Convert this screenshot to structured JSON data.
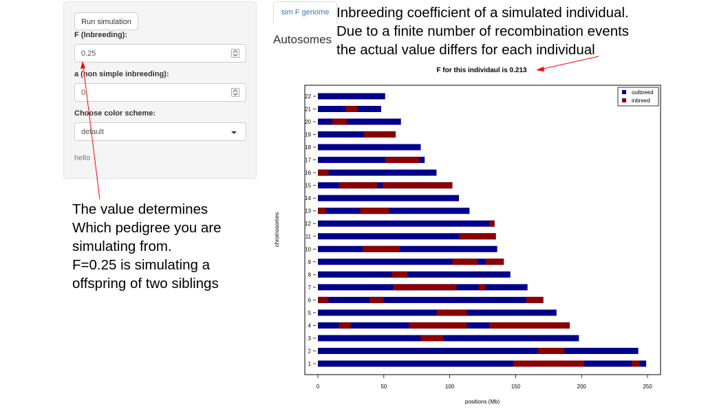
{
  "sidebar": {
    "run_button": "Run simulation",
    "f_label": "F (Inbreeding):",
    "f_value": "0.25",
    "a_label": "a (non simple inbreeding):",
    "a_value": "0",
    "color_label": "Choose color scheme:",
    "color_value": "default",
    "footer_text": "hello"
  },
  "tabs": {
    "active_tab": "sim F genome",
    "section_title": "Autosomes"
  },
  "annotations": {
    "top_lines": [
      "Inbreeding coefficient of a simulated individual.",
      "Due to a finite number of recombination events",
      "the actual value differs for each individual"
    ],
    "left_lines": [
      "The value determines",
      "Which pedigree you are",
      "simulating from.",
      "F=0.25 is simulating a",
      "offspring of two siblings"
    ],
    "arrow_color": "#ff0000"
  },
  "chart_data": {
    "type": "bar",
    "title": "F for this individaul is  0.213",
    "xlabel": "positions (Mb)",
    "ylabel": "chromosomes",
    "xlim": [
      0,
      250
    ],
    "xticks": [
      0,
      50,
      100,
      150,
      200,
      250
    ],
    "legend": {
      "position": "top-right",
      "entries": [
        "outbreed",
        "inbreed"
      ]
    },
    "colors": {
      "outbreed": "#00008b",
      "inbreed": "#8b0000"
    },
    "chromosomes": [
      {
        "name": "1",
        "length": 249,
        "inbred": [
          [
            148,
            202
          ],
          [
            238,
            244
          ]
        ]
      },
      {
        "name": "2",
        "length": 243,
        "inbred": [
          [
            167,
            187
          ]
        ]
      },
      {
        "name": "3",
        "length": 198,
        "inbred": [
          [
            78,
            95
          ]
        ]
      },
      {
        "name": "4",
        "length": 191,
        "inbred": [
          [
            16,
            25
          ],
          [
            69,
            113
          ],
          [
            130,
            191
          ]
        ]
      },
      {
        "name": "5",
        "length": 181,
        "inbred": [
          [
            90,
            113
          ]
        ]
      },
      {
        "name": "6",
        "length": 171,
        "inbred": [
          [
            0,
            8
          ],
          [
            39,
            50
          ],
          [
            158,
            171
          ]
        ]
      },
      {
        "name": "7",
        "length": 159,
        "inbred": [
          [
            57,
            105
          ],
          [
            122,
            127
          ]
        ]
      },
      {
        "name": "8",
        "length": 146,
        "inbred": [
          [
            56,
            68
          ]
        ]
      },
      {
        "name": "9",
        "length": 141,
        "inbred": [
          [
            102,
            121
          ],
          [
            127,
            141
          ]
        ]
      },
      {
        "name": "10",
        "length": 136,
        "inbred": [
          [
            34,
            62
          ]
        ]
      },
      {
        "name": "11",
        "length": 135,
        "inbred": [
          [
            107,
            135
          ]
        ]
      },
      {
        "name": "12",
        "length": 134,
        "inbred": [
          [
            130,
            134
          ]
        ]
      },
      {
        "name": "13",
        "length": 115,
        "inbred": [
          [
            0,
            6
          ],
          [
            32,
            54
          ]
        ]
      },
      {
        "name": "14",
        "length": 107,
        "inbred": []
      },
      {
        "name": "15",
        "length": 102,
        "inbred": [
          [
            16,
            45
          ],
          [
            49,
            102
          ]
        ]
      },
      {
        "name": "16",
        "length": 90,
        "inbred": [
          [
            0,
            8
          ]
        ]
      },
      {
        "name": "17",
        "length": 81,
        "inbred": [
          [
            51,
            77
          ]
        ]
      },
      {
        "name": "18",
        "length": 78,
        "inbred": []
      },
      {
        "name": "19",
        "length": 59,
        "inbred": [
          [
            35,
            59
          ]
        ]
      },
      {
        "name": "20",
        "length": 63,
        "inbred": [
          [
            11,
            22
          ]
        ]
      },
      {
        "name": "21",
        "length": 48,
        "inbred": [
          [
            21,
            30
          ]
        ]
      },
      {
        "name": "22",
        "length": 51,
        "inbred": []
      }
    ]
  }
}
